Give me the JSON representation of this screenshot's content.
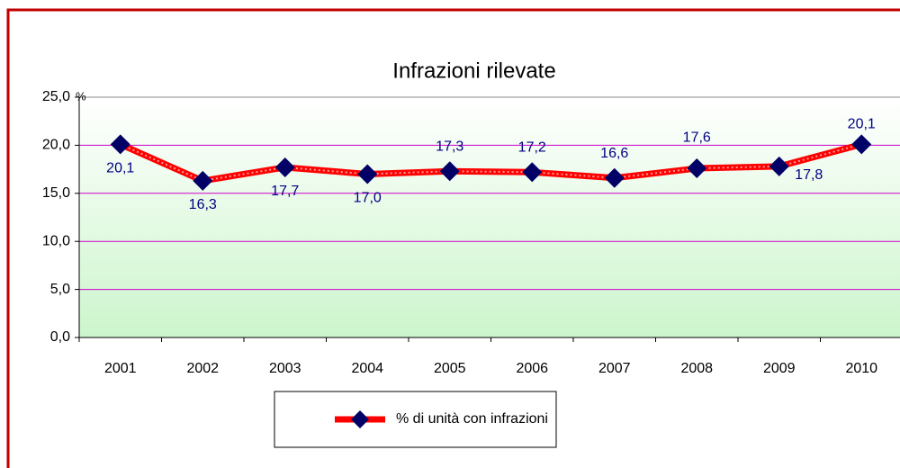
{
  "chart_data": {
    "type": "line",
    "title": "Infrazioni rilevate",
    "ylabel": "%",
    "categories": [
      "2001",
      "2002",
      "2003",
      "2004",
      "2005",
      "2006",
      "2007",
      "2008",
      "2009",
      "2010"
    ],
    "series": [
      {
        "name": "% di unità con infrazioni",
        "color": "#ff0000",
        "marker_color": "#000066",
        "values": [
          20.1,
          16.3,
          17.7,
          17.0,
          17.3,
          17.2,
          16.6,
          17.6,
          17.8,
          20.1
        ],
        "value_labels": [
          "20,1",
          "16,3",
          "17,7",
          "17,0",
          "17,3",
          "17,2",
          "16,6",
          "17,6",
          "17,8",
          "20,1"
        ]
      }
    ],
    "ylim": [
      0,
      25
    ],
    "yticks": [
      {
        "value": 0,
        "label": "0,0"
      },
      {
        "value": 5,
        "label": "5,0"
      },
      {
        "value": 10,
        "label": "10,0"
      },
      {
        "value": 15,
        "label": "15,0"
      },
      {
        "value": 20,
        "label": "20,0"
      },
      {
        "value": 25,
        "label": "25,0"
      }
    ],
    "grid": true,
    "grid_color": "#cc00cc",
    "legend": "bottom"
  }
}
